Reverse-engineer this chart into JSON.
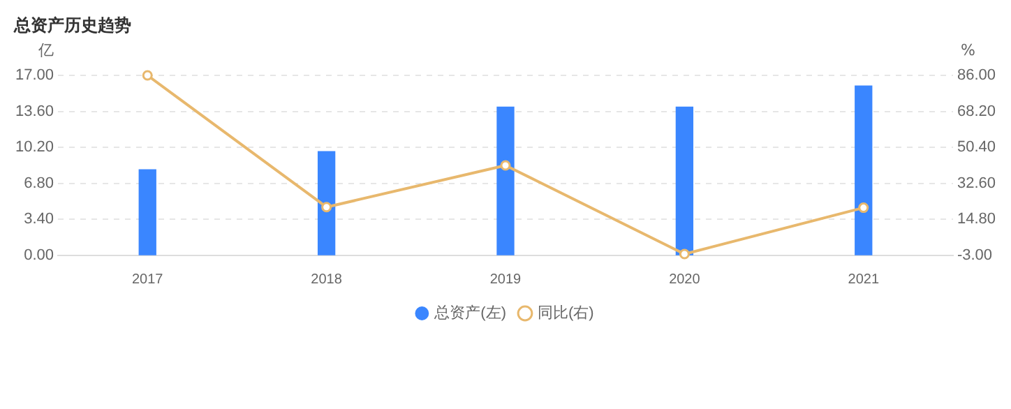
{
  "chart_data": {
    "type": "bar",
    "title": "总资产历史趋势",
    "ylabel": "亿",
    "y2label": "%",
    "categories": [
      "2017",
      "2018",
      "2019",
      "2020",
      "2021"
    ],
    "series": [
      {
        "name": "总资产(左)",
        "color": "#3a86ff",
        "values": [
          8.1,
          9.8,
          14.0,
          14.0,
          16.0
        ]
      },
      {
        "name": "同比(右)",
        "type": "line",
        "axis": "y2",
        "color": "#e8b86d",
        "values": [
          86.0,
          20.9,
          41.5,
          -2.3,
          20.6
        ]
      }
    ],
    "ylim": [
      0,
      17
    ],
    "yticks": [
      {
        "value": 0,
        "label": "0.00"
      },
      {
        "value": 3.4,
        "label": "3.40"
      },
      {
        "value": 6.8,
        "label": "6.80"
      },
      {
        "value": 10.2,
        "label": "10.20"
      },
      {
        "value": 13.6,
        "label": "13.60"
      },
      {
        "value": 17,
        "label": "17.00"
      }
    ],
    "y2lim": [
      -3,
      86
    ],
    "y2ticks": [
      {
        "value": -3,
        "label": "-3.00"
      },
      {
        "value": 14.8,
        "label": "14.80"
      },
      {
        "value": 32.6,
        "label": "32.60"
      },
      {
        "value": 50.4,
        "label": "50.40"
      },
      {
        "value": 68.2,
        "label": "68.20"
      },
      {
        "value": 86,
        "label": "86.00"
      }
    ],
    "grid": "y",
    "legend": "bottom",
    "marker": "circle",
    "line_style": "solid"
  }
}
